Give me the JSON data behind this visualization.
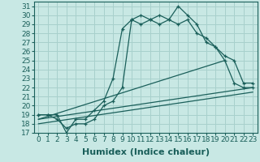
{
  "xlabel": "Humidex (Indice chaleur)",
  "xlim": [
    -0.5,
    23.5
  ],
  "ylim": [
    17,
    31.5
  ],
  "xticks": [
    0,
    1,
    2,
    3,
    4,
    5,
    6,
    7,
    8,
    9,
    10,
    11,
    12,
    13,
    14,
    15,
    16,
    17,
    18,
    19,
    20,
    21,
    22,
    23
  ],
  "yticks": [
    17,
    18,
    19,
    20,
    21,
    22,
    23,
    24,
    25,
    26,
    27,
    28,
    29,
    30,
    31
  ],
  "bg_color": "#c8e8e4",
  "grid_color": "#a8d0cc",
  "line_color": "#1a5f5a",
  "line1_x": [
    0,
    1,
    2,
    3,
    4,
    5,
    6,
    7,
    8,
    9,
    10,
    11,
    12,
    13,
    14,
    15,
    16,
    17,
    18,
    19,
    20,
    21,
    22,
    23
  ],
  "line1_y": [
    19.0,
    19.0,
    19.0,
    17.0,
    18.5,
    18.5,
    19.5,
    20.5,
    23.0,
    28.5,
    29.5,
    30.0,
    29.5,
    30.0,
    29.5,
    31.0,
    30.0,
    29.0,
    27.0,
    26.5,
    25.0,
    22.5,
    22.0,
    22.0
  ],
  "line2_x": [
    0,
    1,
    2,
    3,
    4,
    5,
    6,
    7,
    8,
    9,
    10,
    11,
    12,
    13,
    14,
    15,
    16,
    17,
    18,
    19,
    20,
    21,
    22,
    23
  ],
  "line2_y": [
    19.0,
    19.0,
    18.5,
    17.5,
    18.0,
    18.0,
    18.5,
    20.0,
    20.5,
    22.0,
    29.5,
    29.0,
    29.5,
    29.0,
    29.5,
    29.0,
    29.5,
    28.0,
    27.5,
    26.5,
    25.5,
    25.0,
    22.5,
    22.5
  ],
  "line3_x": [
    0,
    20
  ],
  "line3_y": [
    18.5,
    25.0
  ],
  "line4_x": [
    0,
    23
  ],
  "line4_y": [
    18.0,
    21.5
  ],
  "line5_x": [
    0,
    23
  ],
  "line5_y": [
    18.5,
    22.0
  ],
  "fontsize_xlabel": 8,
  "tick_fontsize": 6.5
}
